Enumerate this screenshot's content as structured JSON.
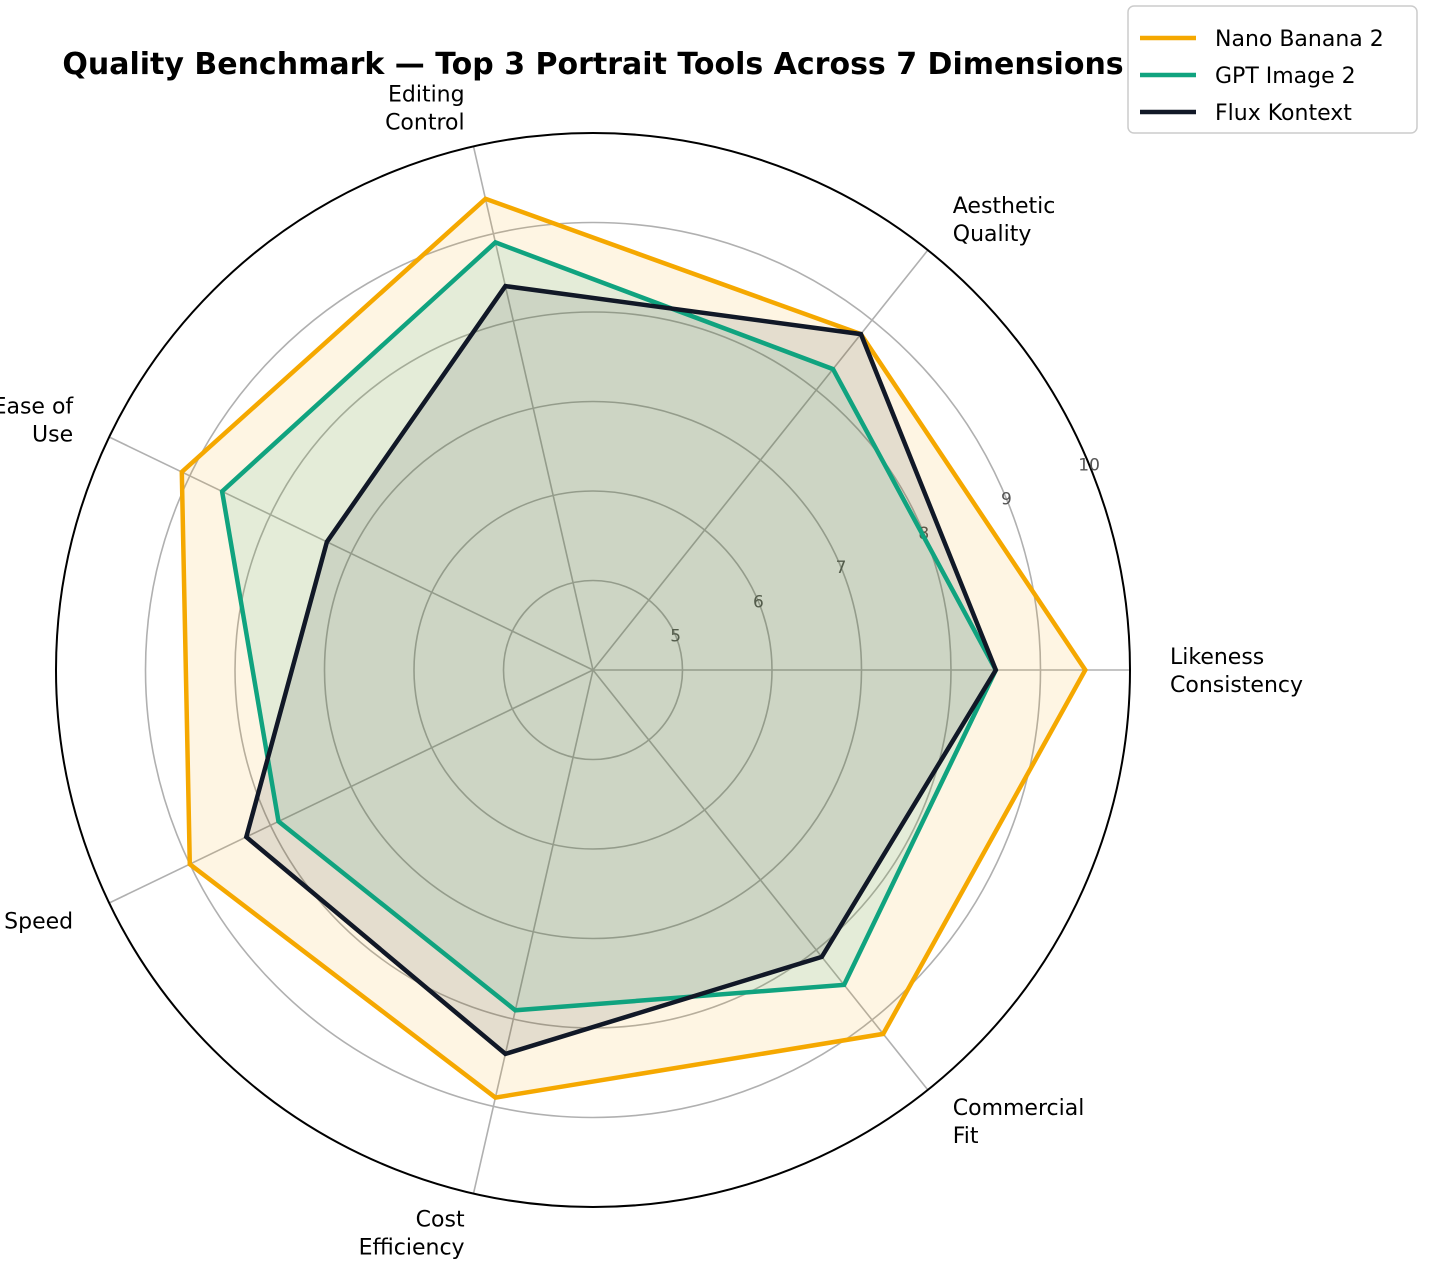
{
  "chart_data": {
    "type": "radar",
    "title": "Quality Benchmark — Top 3 Portrait Tools Across 7 Dimensions",
    "axes": [
      [
        "Likeness",
        "Consistency"
      ],
      [
        "Aesthetic",
        "Quality"
      ],
      [
        "Editing",
        "Control"
      ],
      [
        "Ease of",
        "Use"
      ],
      [
        "Speed"
      ],
      [
        "Cost",
        "Efficiency"
      ],
      [
        "Commercial",
        "Fit"
      ]
    ],
    "rlim": [
      4,
      10
    ],
    "rticks": [
      "5",
      "6",
      "7",
      "8",
      "9",
      "10"
    ],
    "legend_position": "top-right",
    "grid": true,
    "series": [
      {
        "name": "Nano Banana 2",
        "color": "#F5A800",
        "fill_opacity": 0.11,
        "values": [
          9.5,
          8.8,
          9.4,
          9.1,
          9.0,
          8.9,
          9.2
        ]
      },
      {
        "name": "GPT Image 2",
        "color": "#10A37F",
        "fill_opacity": 0.11,
        "values": [
          8.5,
          8.3,
          8.9,
          8.6,
          7.9,
          7.9,
          8.5
        ]
      },
      {
        "name": "Flux Kontext",
        "color": "#111827",
        "fill_opacity": 0.11,
        "values": [
          8.5,
          8.8,
          8.4,
          7.3,
          8.3,
          8.4,
          8.1
        ]
      }
    ]
  }
}
